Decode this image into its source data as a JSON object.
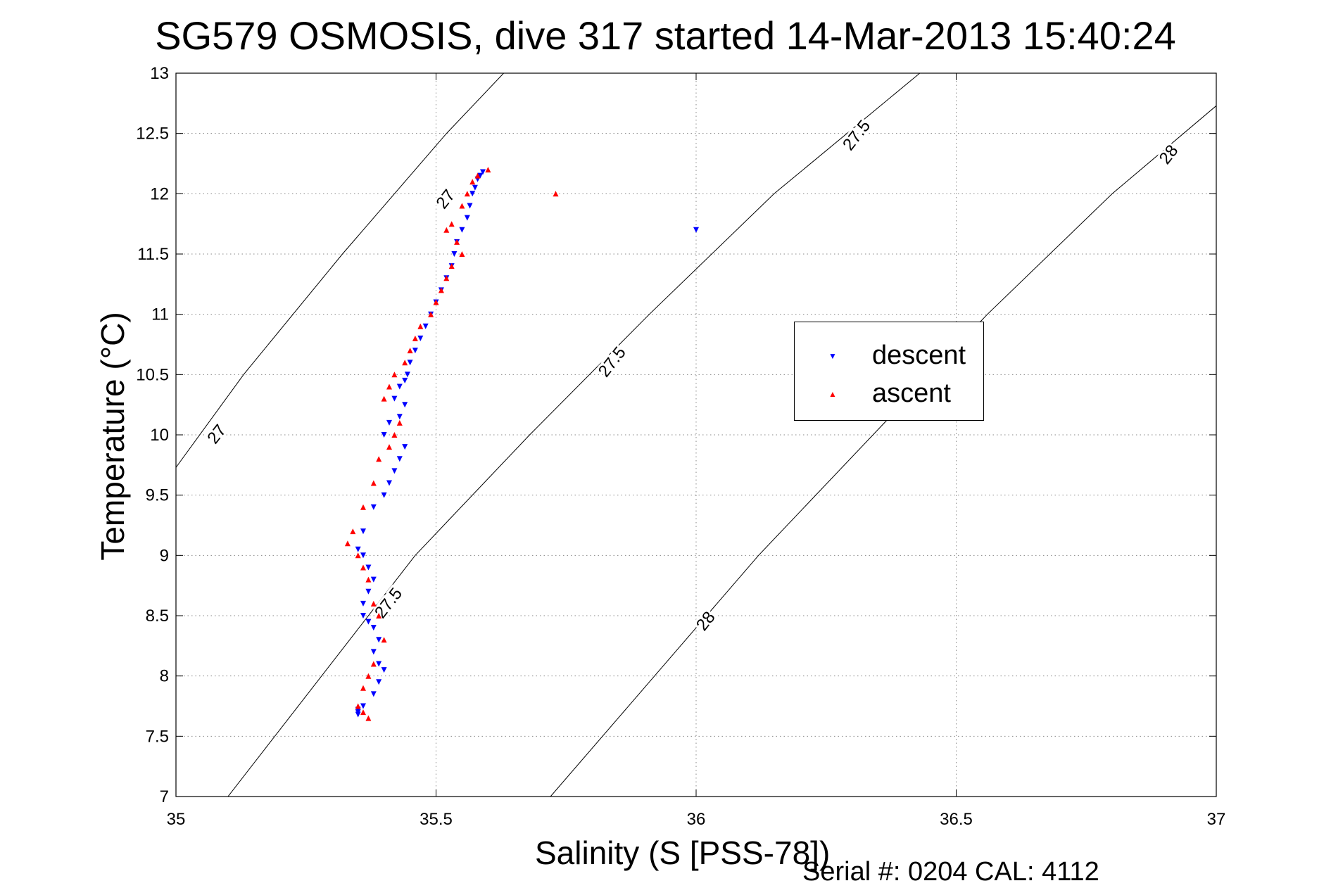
{
  "chart_data": {
    "type": "scatter",
    "title": "SG579 OSMOSIS, dive 317 started 14-Mar-2013 15:40:24",
    "xlabel": "Salinity (S [PSS-78])",
    "ylabel": "Temperature (°C)",
    "xlim": [
      35,
      37
    ],
    "ylim": [
      7,
      13
    ],
    "xticks": [
      "35",
      "35.5",
      "36",
      "36.5",
      "37"
    ],
    "xtick_values": [
      35,
      35.5,
      36,
      36.5,
      37
    ],
    "yticks": [
      "7",
      "7.5",
      "8",
      "8.5",
      "9",
      "9.5",
      "10",
      "10.5",
      "11",
      "11.5",
      "12",
      "12.5",
      "13"
    ],
    "ytick_values": [
      7,
      7.5,
      8,
      8.5,
      9,
      9.5,
      10,
      10.5,
      11,
      11.5,
      12,
      12.5,
      13
    ],
    "grid": true,
    "legend_position": "right",
    "density_contours": [
      {
        "label": "27",
        "points": [
          [
            35.0,
            9.73
          ],
          [
            35.13,
            10.5
          ],
          [
            35.32,
            11.5
          ],
          [
            35.52,
            12.5
          ],
          [
            35.63,
            13.0
          ]
        ]
      },
      {
        "label": "27.5",
        "points": [
          [
            35.1,
            7.0
          ],
          [
            35.28,
            8.0
          ],
          [
            35.46,
            9.0
          ],
          [
            35.68,
            10.0
          ],
          [
            35.91,
            11.0
          ],
          [
            36.15,
            12.0
          ],
          [
            36.43,
            13.0
          ]
        ]
      },
      {
        "label": "28",
        "points": [
          [
            35.72,
            7.0
          ],
          [
            35.92,
            8.0
          ],
          [
            36.12,
            9.0
          ],
          [
            36.34,
            10.0
          ],
          [
            36.56,
            11.0
          ],
          [
            36.8,
            12.0
          ],
          [
            37.0,
            12.73
          ]
        ]
      }
    ],
    "contour_labels": [
      {
        "text": "27",
        "x": 35.08,
        "y": 10.0
      },
      {
        "text": "27",
        "x": 35.52,
        "y": 11.95
      },
      {
        "text": "27.5",
        "x": 35.41,
        "y": 8.6
      },
      {
        "text": "27.5",
        "x": 35.84,
        "y": 10.6
      },
      {
        "text": "27.5",
        "x": 36.31,
        "y": 12.48
      },
      {
        "text": "28",
        "x": 36.02,
        "y": 8.45
      },
      {
        "text": "28",
        "x": 36.91,
        "y": 12.32
      }
    ],
    "series": [
      {
        "name": "descent",
        "color": "#0000ff",
        "marker": "triangle-down",
        "x": [
          35.59,
          35.585,
          35.58,
          35.575,
          35.57,
          35.565,
          35.56,
          35.55,
          35.54,
          35.535,
          35.53,
          35.52,
          35.51,
          35.5,
          35.49,
          35.48,
          35.47,
          35.46,
          35.45,
          35.445,
          35.44,
          35.43,
          35.42,
          35.41,
          35.4,
          35.44,
          35.43,
          35.44,
          35.43,
          35.42,
          35.41,
          35.4,
          35.38,
          35.36,
          35.35,
          35.36,
          35.37,
          35.38,
          35.37,
          35.36,
          35.36,
          35.37,
          35.38,
          35.39,
          35.38,
          35.39,
          35.4,
          35.39,
          35.38,
          35.36,
          35.35,
          35.35,
          35.35,
          36.0
        ],
        "y": [
          12.18,
          12.15,
          12.12,
          12.05,
          12.0,
          11.9,
          11.8,
          11.7,
          11.6,
          11.5,
          11.4,
          11.3,
          11.2,
          11.1,
          11.0,
          10.9,
          10.8,
          10.7,
          10.6,
          10.5,
          10.45,
          10.4,
          10.3,
          10.1,
          10.0,
          10.25,
          10.15,
          9.9,
          9.8,
          9.7,
          9.6,
          9.5,
          9.4,
          9.2,
          9.05,
          9.0,
          8.9,
          8.8,
          8.7,
          8.6,
          8.5,
          8.45,
          8.4,
          8.3,
          8.2,
          8.1,
          8.05,
          7.95,
          7.85,
          7.75,
          7.72,
          7.7,
          7.68,
          11.7
        ]
      },
      {
        "name": "ascent",
        "color": "#ff0000",
        "marker": "triangle-up",
        "x": [
          35.6,
          35.58,
          35.57,
          35.56,
          35.55,
          35.53,
          35.52,
          35.54,
          35.55,
          35.53,
          35.52,
          35.51,
          35.5,
          35.49,
          35.47,
          35.46,
          35.45,
          35.44,
          35.42,
          35.41,
          35.4,
          35.43,
          35.42,
          35.41,
          35.39,
          35.38,
          35.36,
          35.34,
          35.33,
          35.35,
          35.36,
          35.37,
          35.38,
          35.39,
          35.4,
          35.38,
          35.37,
          35.36,
          35.35,
          35.36,
          35.37,
          35.73
        ],
        "y": [
          12.2,
          12.15,
          12.1,
          12.0,
          11.9,
          11.75,
          11.7,
          11.6,
          11.5,
          11.4,
          11.3,
          11.2,
          11.1,
          11.0,
          10.9,
          10.8,
          10.7,
          10.6,
          10.5,
          10.4,
          10.3,
          10.1,
          10.0,
          9.9,
          9.8,
          9.6,
          9.4,
          9.2,
          9.1,
          9.0,
          8.9,
          8.8,
          8.6,
          8.5,
          8.3,
          8.1,
          8.0,
          7.9,
          7.75,
          7.7,
          7.65,
          12.0
        ]
      }
    ],
    "annotations": [
      "Serial #: 0204  CAL: 4112"
    ]
  }
}
